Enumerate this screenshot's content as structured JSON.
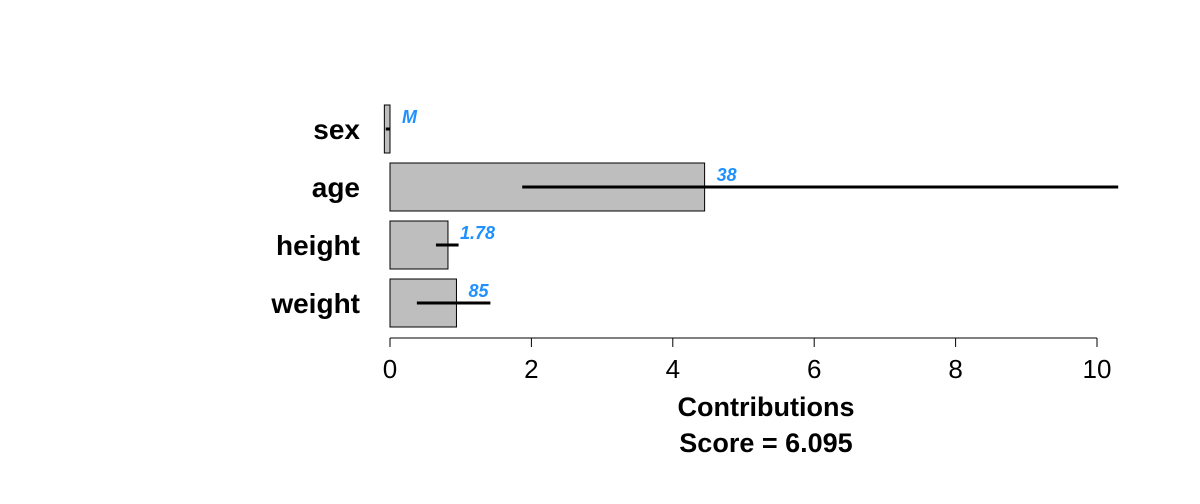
{
  "chart_data": {
    "type": "bar",
    "orientation": "horizontal",
    "categories": [
      "sex",
      "age",
      "height",
      "weight"
    ],
    "values": [
      -0.08,
      4.45,
      0.82,
      0.94
    ],
    "error_low": [
      -0.06,
      1.87,
      0.65,
      0.38
    ],
    "error_high": [
      0.0,
      10.3,
      0.97,
      1.42
    ],
    "value_labels": [
      "M",
      "38",
      "1.78",
      "85"
    ],
    "xlabel": "Contributions",
    "subtitle": "Score = 6.095",
    "xlim": [
      0,
      10
    ],
    "xticks": [
      "0",
      "2",
      "4",
      "6",
      "8",
      "10"
    ],
    "grid": false,
    "colors": {
      "bar_fill": "#bebebe",
      "bar_stroke": "#000000",
      "error_bar": "#000000",
      "value_label": "#1e90ff"
    }
  }
}
